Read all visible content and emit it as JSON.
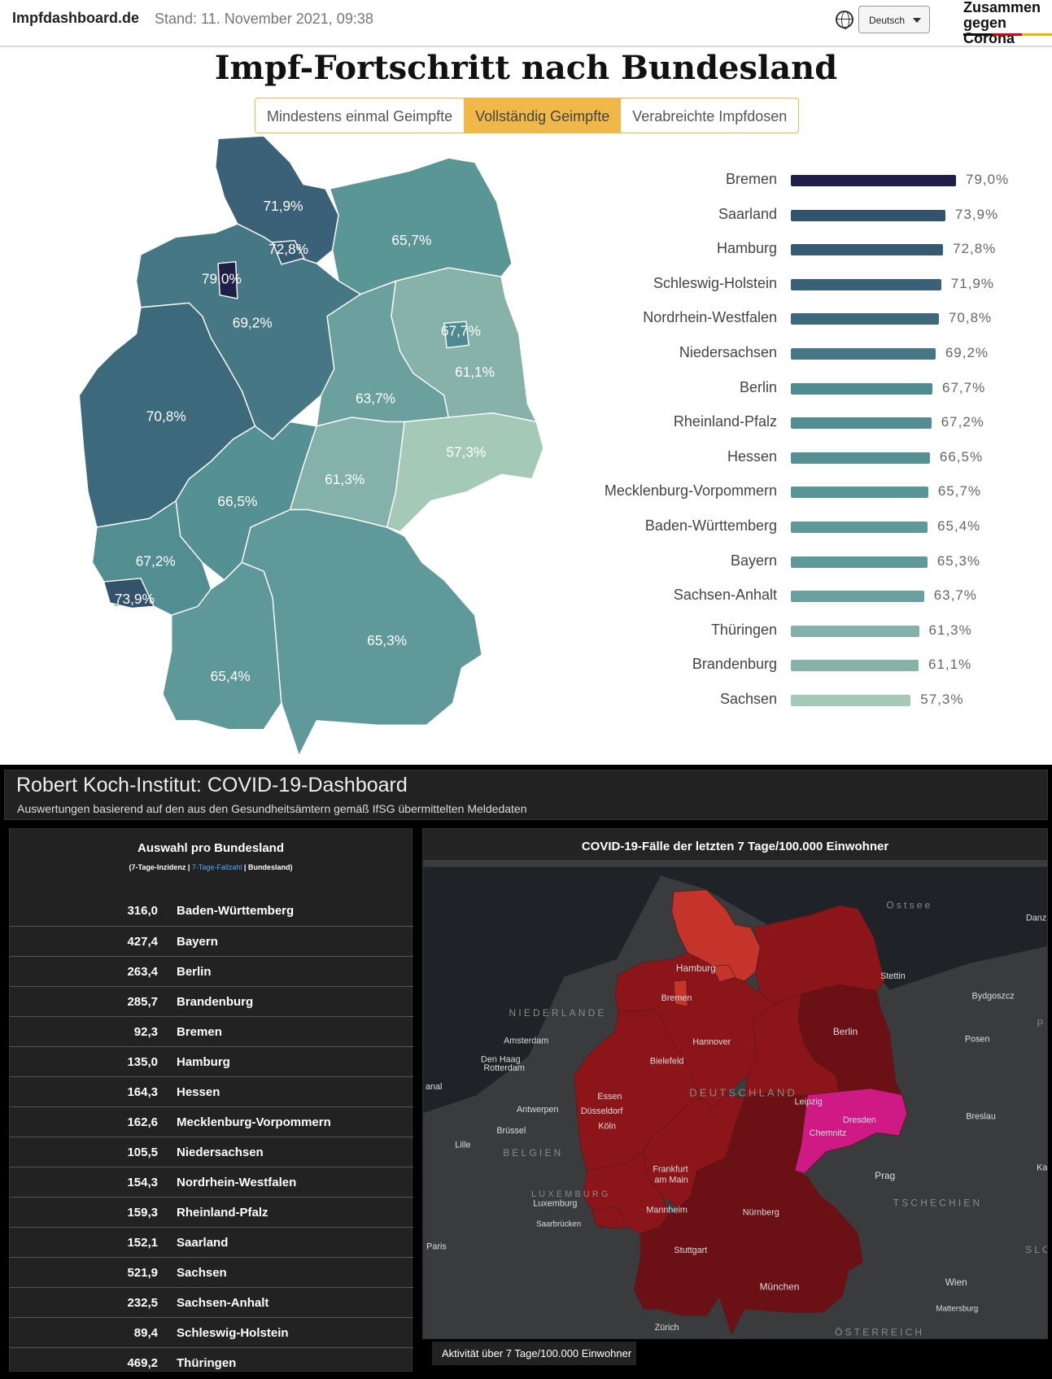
{
  "header": {
    "brand": "Impfdashboard.de",
    "stand": "Stand: 11. November 2021, 09:38",
    "language": "Deutsch",
    "logo_line1": "Zusammen",
    "logo_line2": "gegen Corona"
  },
  "vaccination": {
    "title": "Impf-Fortschritt nach Bundesland",
    "tabs": [
      {
        "label": "Mindestens einmal Geimpfte",
        "active": false
      },
      {
        "label": "Vollständig Geimpfte",
        "active": true
      },
      {
        "label": "Verabreichte Impfdosen",
        "active": false
      }
    ],
    "unit": "%",
    "states": [
      {
        "id": "HB",
        "name": "Bremen",
        "value": 79.0,
        "label": "79,0%",
        "color": "#1f1f4a"
      },
      {
        "id": "SL",
        "name": "Saarland",
        "value": 73.9,
        "label": "73,9%",
        "color": "#33536d"
      },
      {
        "id": "HH",
        "name": "Hamburg",
        "value": 72.8,
        "label": "72,8%",
        "color": "#365a72"
      },
      {
        "id": "SH",
        "name": "Schleswig-Holstein",
        "value": 71.9,
        "label": "71,9%",
        "color": "#3a6177"
      },
      {
        "id": "NW",
        "name": "Nordrhein-Westfalen",
        "value": 70.8,
        "label": "70,8%",
        "color": "#3d697d"
      },
      {
        "id": "NI",
        "name": "Niedersachsen",
        "value": 69.2,
        "label": "69,2%",
        "color": "#457884"
      },
      {
        "id": "BE",
        "name": "Berlin",
        "value": 67.7,
        "label": "67,7%",
        "color": "#4e8a8f"
      },
      {
        "id": "RP",
        "name": "Rheinland-Pfalz",
        "value": 67.2,
        "label": "67,2%",
        "color": "#518d91"
      },
      {
        "id": "HE",
        "name": "Hessen",
        "value": 66.5,
        "label": "66,5%",
        "color": "#559194"
      },
      {
        "id": "MV",
        "name": "Mecklenburg-Vorpommern",
        "value": 65.7,
        "label": "65,7%",
        "color": "#5b9697"
      },
      {
        "id": "BW",
        "name": "Baden-Württemberg",
        "value": 65.4,
        "label": "65,4%",
        "color": "#5e9898"
      },
      {
        "id": "BY",
        "name": "Bayern",
        "value": 65.3,
        "label": "65,3%",
        "color": "#5f9999"
      },
      {
        "id": "ST",
        "name": "Sachsen-Anhalt",
        "value": 63.7,
        "label": "63,7%",
        "color": "#6aa19f"
      },
      {
        "id": "TH",
        "name": "Thüringen",
        "value": 61.3,
        "label": "61,3%",
        "color": "#84b1a9"
      },
      {
        "id": "BB",
        "name": "Brandenburg",
        "value": 61.1,
        "label": "61,1%",
        "color": "#86b2aa"
      },
      {
        "id": "SN",
        "name": "Sachsen",
        "value": 57.3,
        "label": "57,3%",
        "color": "#a5c9b7"
      }
    ]
  },
  "rki": {
    "title": "Robert Koch-Institut: COVID-19-Dashboard",
    "subtitle": "Auswertungen basierend auf den aus den Gesundheitsämtern gemäß IfSG übermittelten Meldedaten",
    "list_title": "Auswahl pro Bundesland",
    "list_sub_a": "(7-Tage-Inzidenz | ",
    "list_sub_b": "7-Tage-Fallzahl",
    "list_sub_c": " | Bundesland)",
    "rows": [
      {
        "value": "316,0",
        "name": "Baden-Württemberg"
      },
      {
        "value": "427,4",
        "name": "Bayern"
      },
      {
        "value": "263,4",
        "name": "Berlin"
      },
      {
        "value": "285,7",
        "name": "Brandenburg"
      },
      {
        "value": "92,3",
        "name": "Bremen"
      },
      {
        "value": "135,0",
        "name": "Hamburg"
      },
      {
        "value": "164,3",
        "name": "Hessen"
      },
      {
        "value": "162,6",
        "name": "Mecklenburg-Vorpommern"
      },
      {
        "value": "105,5",
        "name": "Niedersachsen"
      },
      {
        "value": "154,3",
        "name": "Nordrhein-Westfalen"
      },
      {
        "value": "159,3",
        "name": "Rheinland-Pfalz"
      },
      {
        "value": "152,1",
        "name": "Saarland"
      },
      {
        "value": "521,9",
        "name": "Sachsen"
      },
      {
        "value": "232,5",
        "name": "Sachsen-Anhalt"
      },
      {
        "value": "89,4",
        "name": "Schleswig-Holstein"
      },
      {
        "value": "469,2",
        "name": "Thüringen"
      }
    ],
    "map_title": "COVID-19-Fälle der letzten 7 Tage/100.000 Einwohner",
    "legend_tab": "Aktivität über 7 Tage/100.000 Einwohner",
    "map_colors": {
      "SH": "#c4342b",
      "HH": "#c4342b",
      "HB": "#c4342b",
      "NI": "#8c1519",
      "NW": "#8c1519",
      "HE": "#8c1519",
      "RP": "#8c1519",
      "SL": "#8c1519",
      "MV": "#8c1519",
      "ST": "#8c1519",
      "BB": "#6b1015",
      "BE": "#6b1015",
      "TH": "#6b1015",
      "BW": "#6b1015",
      "BY": "#6b1015",
      "SN": "#cf1a85"
    },
    "place_labels": [
      "Hamburg",
      "Bremen",
      "Stettin",
      "Bydgoszcz",
      "Ostsee",
      "Danz",
      "NIEDERLANDE",
      "Amsterdam",
      "Den Haag",
      "Rotterdam",
      "Hannover",
      "Bielefeld",
      "Berlin",
      "Posen",
      "anal",
      "Essen",
      "DEUTSCHLAND",
      "Leipzig",
      "Düsseldorf",
      "Dresden",
      "Antwerpen",
      "Chemnitz",
      "Breslau",
      "Brüssel",
      "Köln",
      "Lille",
      "BELGIEN",
      "Prag",
      "Frankfurt",
      "am Main",
      "LUXEMBURG",
      "TSCHECHIEN",
      "Luxemburg",
      "Mannheim",
      "Nürnberg",
      "Saarbrücken",
      "Paris",
      "Stuttgart",
      "SLO",
      "München",
      "Wien",
      "Mattersburg",
      "Zürich",
      "ÖSTERREICH",
      "P",
      "Kat"
    ]
  }
}
